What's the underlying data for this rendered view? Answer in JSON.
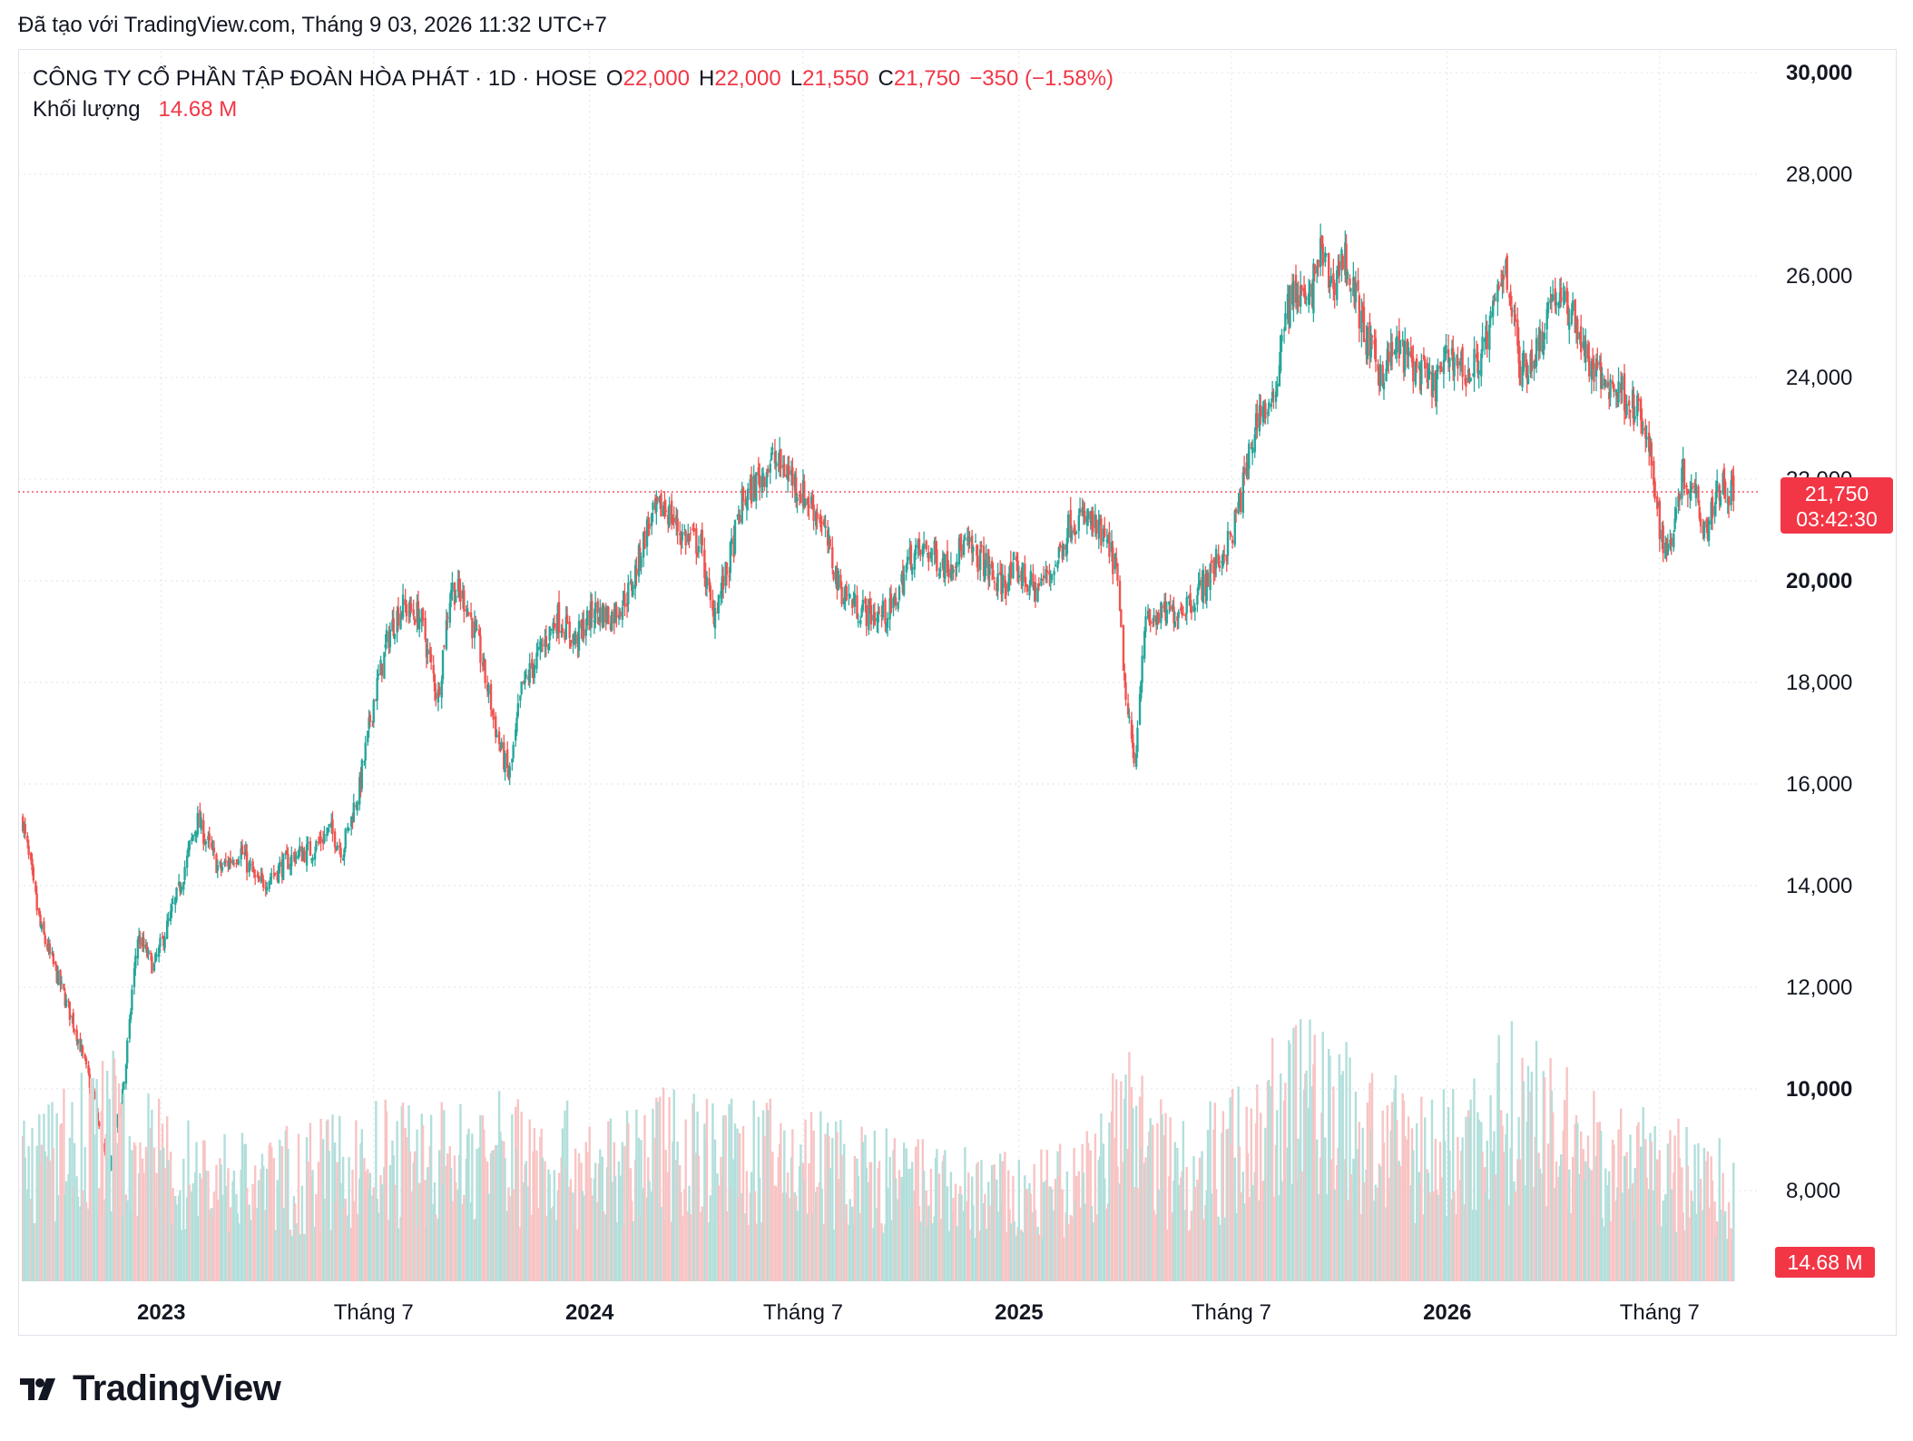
{
  "header": {
    "created_text": "Đã tạo với TradingView.com, Tháng 9 03, 2026 11:32 UTC+7"
  },
  "legend": {
    "symbol": "CÔNG TY CỔ PHẦN TẬP ĐOÀN HÒA PHÁT · 1D · HOSE",
    "o_label": "O",
    "o_value": "22,000",
    "h_label": "H",
    "h_value": "22,000",
    "l_label": "L",
    "l_value": "21,550",
    "c_label": "C",
    "c_value": "21,750",
    "change": "−350 (−1.58%)",
    "volume_label": "Khối lượng",
    "volume_value": "14.68 M"
  },
  "badges": {
    "last_price": "21,750",
    "countdown": "03:42:30",
    "last_volume": "14.68 M"
  },
  "colors": {
    "up": "#26a69a",
    "down": "#ef5350",
    "badge": "#f23645",
    "grid": "#e0e3eb",
    "text": "#131722"
  },
  "logo": {
    "text": "TradingView"
  },
  "chart_data": {
    "type": "candlestick",
    "ylim": [
      7000,
      30500
    ],
    "y_ticks": [
      "30,000",
      "28,000",
      "26,000",
      "24,000",
      "22,000",
      "20,000",
      "18,000",
      "16,000",
      "14,000",
      "12,000",
      "10,000",
      "8,000"
    ],
    "y_tick_values": [
      30000,
      28000,
      26000,
      24000,
      22000,
      20000,
      18000,
      16000,
      14000,
      12000,
      10000,
      8000
    ],
    "x_ticks": [
      "2023",
      "Tháng 7",
      "2024",
      "Tháng 7",
      "2025",
      "Tháng 7",
      "2026",
      "Tháng 7"
    ],
    "x_tick_dates": [
      "2023-01-01",
      "2023-07-01",
      "2024-01-01",
      "2024-07-01",
      "2025-01-01",
      "2025-07-01",
      "2026-01-01",
      "2026-07-01"
    ],
    "x_range": [
      "2022-09-01",
      "2026-09-25"
    ],
    "last_close": 21750,
    "price_series": [
      [
        "2022-09-05",
        15300
      ],
      [
        "2022-09-20",
        13200
      ],
      [
        "2022-10-05",
        12200
      ],
      [
        "2022-10-20",
        11200
      ],
      [
        "2022-11-05",
        9800
      ],
      [
        "2022-11-17",
        8300
      ],
      [
        "2022-12-01",
        10200
      ],
      [
        "2022-12-12",
        13000
      ],
      [
        "2022-12-26",
        12400
      ],
      [
        "2023-01-15",
        13800
      ],
      [
        "2023-02-01",
        15300
      ],
      [
        "2023-02-20",
        14300
      ],
      [
        "2023-03-10",
        14700
      ],
      [
        "2023-03-25",
        14000
      ],
      [
        "2023-04-10",
        14300
      ],
      [
        "2023-04-25",
        14600
      ],
      [
        "2023-05-10",
        14700
      ],
      [
        "2023-05-25",
        15100
      ],
      [
        "2023-06-05",
        14700
      ],
      [
        "2023-06-20",
        16000
      ],
      [
        "2023-07-01",
        17600
      ],
      [
        "2023-07-15",
        19000
      ],
      [
        "2023-07-25",
        19500
      ],
      [
        "2023-08-10",
        19300
      ],
      [
        "2023-08-25",
        17700
      ],
      [
        "2023-09-05",
        19900
      ],
      [
        "2023-09-18",
        19600
      ],
      [
        "2023-10-01",
        18500
      ],
      [
        "2023-10-15",
        16900
      ],
      [
        "2023-10-25",
        16100
      ],
      [
        "2023-11-05",
        17900
      ],
      [
        "2023-11-20",
        18600
      ],
      [
        "2023-12-05",
        19300
      ],
      [
        "2023-12-20",
        18800
      ],
      [
        "2024-01-05",
        19400
      ],
      [
        "2024-01-20",
        19300
      ],
      [
        "2024-02-05",
        19800
      ],
      [
        "2024-02-20",
        21100
      ],
      [
        "2024-03-05",
        21500
      ],
      [
        "2024-03-20",
        20900
      ],
      [
        "2024-04-05",
        20700
      ],
      [
        "2024-04-15",
        19300
      ],
      [
        "2024-04-28",
        20200
      ],
      [
        "2024-05-10",
        21500
      ],
      [
        "2024-05-25",
        22000
      ],
      [
        "2024-06-05",
        22400
      ],
      [
        "2024-06-20",
        22100
      ],
      [
        "2024-07-01",
        21700
      ],
      [
        "2024-07-15",
        21300
      ],
      [
        "2024-08-01",
        19900
      ],
      [
        "2024-08-15",
        19500
      ],
      [
        "2024-09-01",
        19300
      ],
      [
        "2024-09-15",
        19400
      ],
      [
        "2024-10-01",
        20500
      ],
      [
        "2024-10-15",
        20600
      ],
      [
        "2024-11-01",
        20300
      ],
      [
        "2024-11-15",
        20700
      ],
      [
        "2024-12-01",
        20400
      ],
      [
        "2024-12-15",
        19900
      ],
      [
        "2025-01-01",
        20200
      ],
      [
        "2025-01-15",
        19800
      ],
      [
        "2025-02-01",
        20300
      ],
      [
        "2025-02-15",
        21200
      ],
      [
        "2025-03-01",
        21200
      ],
      [
        "2025-03-15",
        20800
      ],
      [
        "2025-03-25",
        20300
      ],
      [
        "2025-04-03",
        17500
      ],
      [
        "2025-04-10",
        16400
      ],
      [
        "2025-04-18",
        19100
      ],
      [
        "2025-05-01",
        19300
      ],
      [
        "2025-05-15",
        19400
      ],
      [
        "2025-06-01",
        19700
      ],
      [
        "2025-06-15",
        20200
      ],
      [
        "2025-07-01",
        20800
      ],
      [
        "2025-07-10",
        21700
      ],
      [
        "2025-07-25",
        23400
      ],
      [
        "2025-08-05",
        23300
      ],
      [
        "2025-08-15",
        25200
      ],
      [
        "2025-08-25",
        25700
      ],
      [
        "2025-09-05",
        25400
      ],
      [
        "2025-09-15",
        26500
      ],
      [
        "2025-09-25",
        25800
      ],
      [
        "2025-10-05",
        26400
      ],
      [
        "2025-10-15",
        25600
      ],
      [
        "2025-10-25",
        24700
      ],
      [
        "2025-11-05",
        24100
      ],
      [
        "2025-11-20",
        24600
      ],
      [
        "2025-12-05",
        24200
      ],
      [
        "2025-12-20",
        23800
      ],
      [
        "2026-01-05",
        24500
      ],
      [
        "2026-01-20",
        24000
      ],
      [
        "2026-02-05",
        24800
      ],
      [
        "2026-02-20",
        26300
      ],
      [
        "2026-03-05",
        24100
      ],
      [
        "2026-03-20",
        24600
      ],
      [
        "2026-04-01",
        25700
      ],
      [
        "2026-04-10",
        25400
      ],
      [
        "2026-04-20",
        25200
      ],
      [
        "2026-05-01",
        24300
      ],
      [
        "2026-05-15",
        23900
      ],
      [
        "2026-06-01",
        23700
      ],
      [
        "2026-06-15",
        23200
      ],
      [
        "2026-06-25",
        22200
      ],
      [
        "2026-07-05",
        20600
      ],
      [
        "2026-07-10",
        20700
      ],
      [
        "2026-07-20",
        22100
      ],
      [
        "2026-08-01",
        21800
      ],
      [
        "2026-08-10",
        21000
      ],
      [
        "2026-08-20",
        21900
      ],
      [
        "2026-09-03",
        21750
      ]
    ],
    "volume_series": [
      [
        "2022-09-01",
        6.0
      ],
      [
        "2022-10-15",
        7.0
      ],
      [
        "2022-11-15",
        8.5
      ],
      [
        "2022-12-15",
        7.0
      ],
      [
        "2023-01-15",
        6.0
      ],
      [
        "2023-03-01",
        5.5
      ],
      [
        "2023-05-01",
        5.5
      ],
      [
        "2023-07-01",
        6.5
      ],
      [
        "2023-09-01",
        6.5
      ],
      [
        "2023-10-15",
        7.0
      ],
      [
        "2023-12-01",
        6.5
      ],
      [
        "2024-02-01",
        6.0
      ],
      [
        "2024-03-15",
        7.5
      ],
      [
        "2024-05-01",
        6.5
      ],
      [
        "2024-07-01",
        6.5
      ],
      [
        "2024-09-01",
        5.5
      ],
      [
        "2024-11-01",
        5.0
      ],
      [
        "2025-01-01",
        4.5
      ],
      [
        "2025-02-15",
        5.0
      ],
      [
        "2025-04-05",
        8.5
      ],
      [
        "2025-05-15",
        6.0
      ],
      [
        "2025-07-01",
        7.0
      ],
      [
        "2025-08-15",
        9.5
      ],
      [
        "2025-09-15",
        10.0
      ],
      [
        "2025-10-15",
        8.0
      ],
      [
        "2025-12-01",
        7.0
      ],
      [
        "2026-01-15",
        7.0
      ],
      [
        "2026-02-20",
        9.5
      ],
      [
        "2026-04-01",
        8.0
      ],
      [
        "2026-05-15",
        6.5
      ],
      [
        "2026-07-05",
        6.0
      ],
      [
        "2026-09-03",
        5.0
      ]
    ]
  }
}
